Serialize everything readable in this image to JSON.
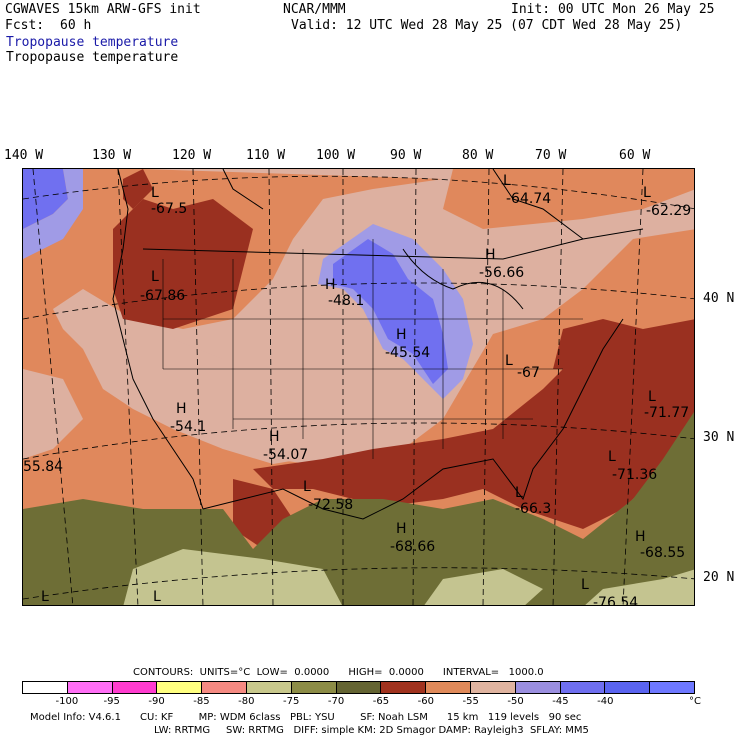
{
  "header": {
    "model": "CGWAVES 15km ARW-GFS init",
    "fcst_label": "Fcst:",
    "fcst_value": "60 h",
    "org": "NCAR/MMM",
    "init": "Init: 00 UTC Mon 26 May 25",
    "valid": "Valid: 12 UTC Wed 28 May 25 (07 CDT Wed 28 May 25)",
    "field_title_blue": "Tropopause temperature",
    "field_title_black": "Tropopause temperature"
  },
  "longitudes": [
    "140 W",
    "130 W",
    "120 W",
    "110 W",
    "100 W",
    "90 W",
    "80 W",
    "70 W",
    "60 W"
  ],
  "latitudes": [
    "40 N",
    "30 N",
    "20 N"
  ],
  "centers": [
    {
      "letter": "L",
      "value": "-67.5"
    },
    {
      "letter": "L",
      "value": "-67.86"
    },
    {
      "letter": "L",
      "value": "-64.74"
    },
    {
      "letter": "L",
      "value": "-62.29"
    },
    {
      "letter": "H",
      "value": "-56.66"
    },
    {
      "letter": "H",
      "value": "-48.1"
    },
    {
      "letter": "H",
      "value": "-45.54"
    },
    {
      "letter": "L",
      "value": "-67"
    },
    {
      "letter": "H",
      "value": "-54.1"
    },
    {
      "letter": "H",
      "value": "-54.07"
    },
    {
      "letter": "L",
      "value": "-71.77"
    },
    {
      "letter": "L",
      "value": "-71.36"
    },
    {
      "letter": "L",
      "value": "-72.58"
    },
    {
      "letter": "L",
      "value": "-66.3"
    },
    {
      "letter": "H",
      "value": "-68.66"
    },
    {
      "letter": "H",
      "value": "-68.55"
    },
    {
      "letter": "",
      "value": "55.84"
    },
    {
      "letter": "L",
      "value": "-76.54"
    },
    {
      "letter": "L",
      "value": ""
    },
    {
      "letter": "L",
      "value": ""
    }
  ],
  "footer": {
    "contours": "CONTOURS:  UNITS=°C  LOW=  0.0000      HIGH=  0.0000      INTERVAL=   1000.0",
    "model_info": "Model Info: V4.6.1      CU: KF        MP: WDM 6class   PBL: YSU        SF: Noah LSM      15 km   119 levels   90 sec",
    "model_info2": "LW: RRTMG     SW: RRTMG   DIFF: simple KM: 2D Smagor DAMP: Rayleigh3  SFLAY: MM5"
  },
  "colorbar": {
    "colors": [
      "#ffffff",
      "#ff6ef5",
      "#ff3ccf",
      "#ffff80",
      "#f58a82",
      "#c8c88c",
      "#8c8c46",
      "#646432",
      "#a0321e",
      "#e08a5a",
      "#e0b4a0",
      "#9b8fe0",
      "#6f6ff0",
      "#5a64f0",
      "#6e78ff"
    ],
    "ticks": [
      "-100",
      "-95",
      "-90",
      "-85",
      "-80",
      "-75",
      "-70",
      "-65",
      "-60",
      "-55",
      "-50",
      "-45",
      "-40"
    ],
    "unit": "°C"
  },
  "palette": {
    "dark_red": "#9a3020",
    "orange": "#e0885c",
    "pink": "#ddb0a0",
    "lavender": "#a09be6",
    "blue": "#7070f0",
    "olive": "#6e6e36",
    "tan": "#c4c490"
  }
}
